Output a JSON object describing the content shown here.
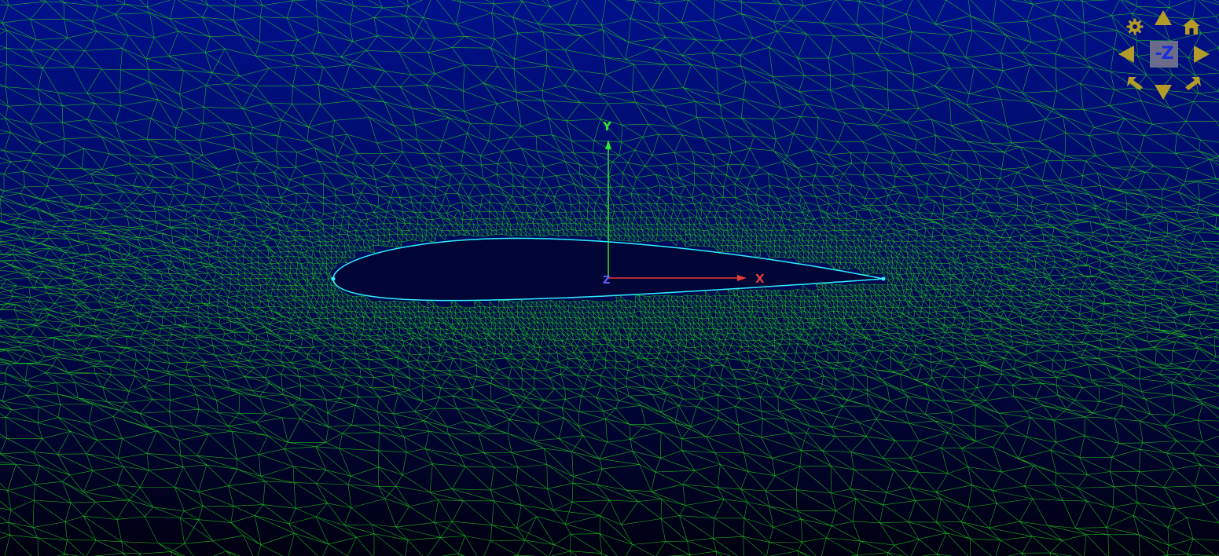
{
  "viewport": {
    "background_top": "#00108a",
    "background_bottom": "#000010",
    "mesh_color": "#1fcf1f",
    "airfoil_outline_color": "#2ff0ff",
    "airfoil_fill_color": "#000535"
  },
  "axes": {
    "x_label": "X",
    "y_label": "Y",
    "z_label": "Z",
    "x_color": "#e83a3a",
    "y_color": "#2ee82e",
    "z_color": "#6060ff"
  },
  "navcube": {
    "face_label": "-Z",
    "button_color": "#b39b2a",
    "items": [
      {
        "name": "settings-gear-icon"
      },
      {
        "name": "rotate-up-arrow-icon"
      },
      {
        "name": "home-icon"
      },
      {
        "name": "rotate-left-arrow-icon"
      },
      {
        "name": "rotate-right-arrow-icon"
      },
      {
        "name": "rotate-ccw-icon"
      },
      {
        "name": "rotate-down-arrow-icon"
      },
      {
        "name": "rotate-cw-icon"
      }
    ]
  }
}
